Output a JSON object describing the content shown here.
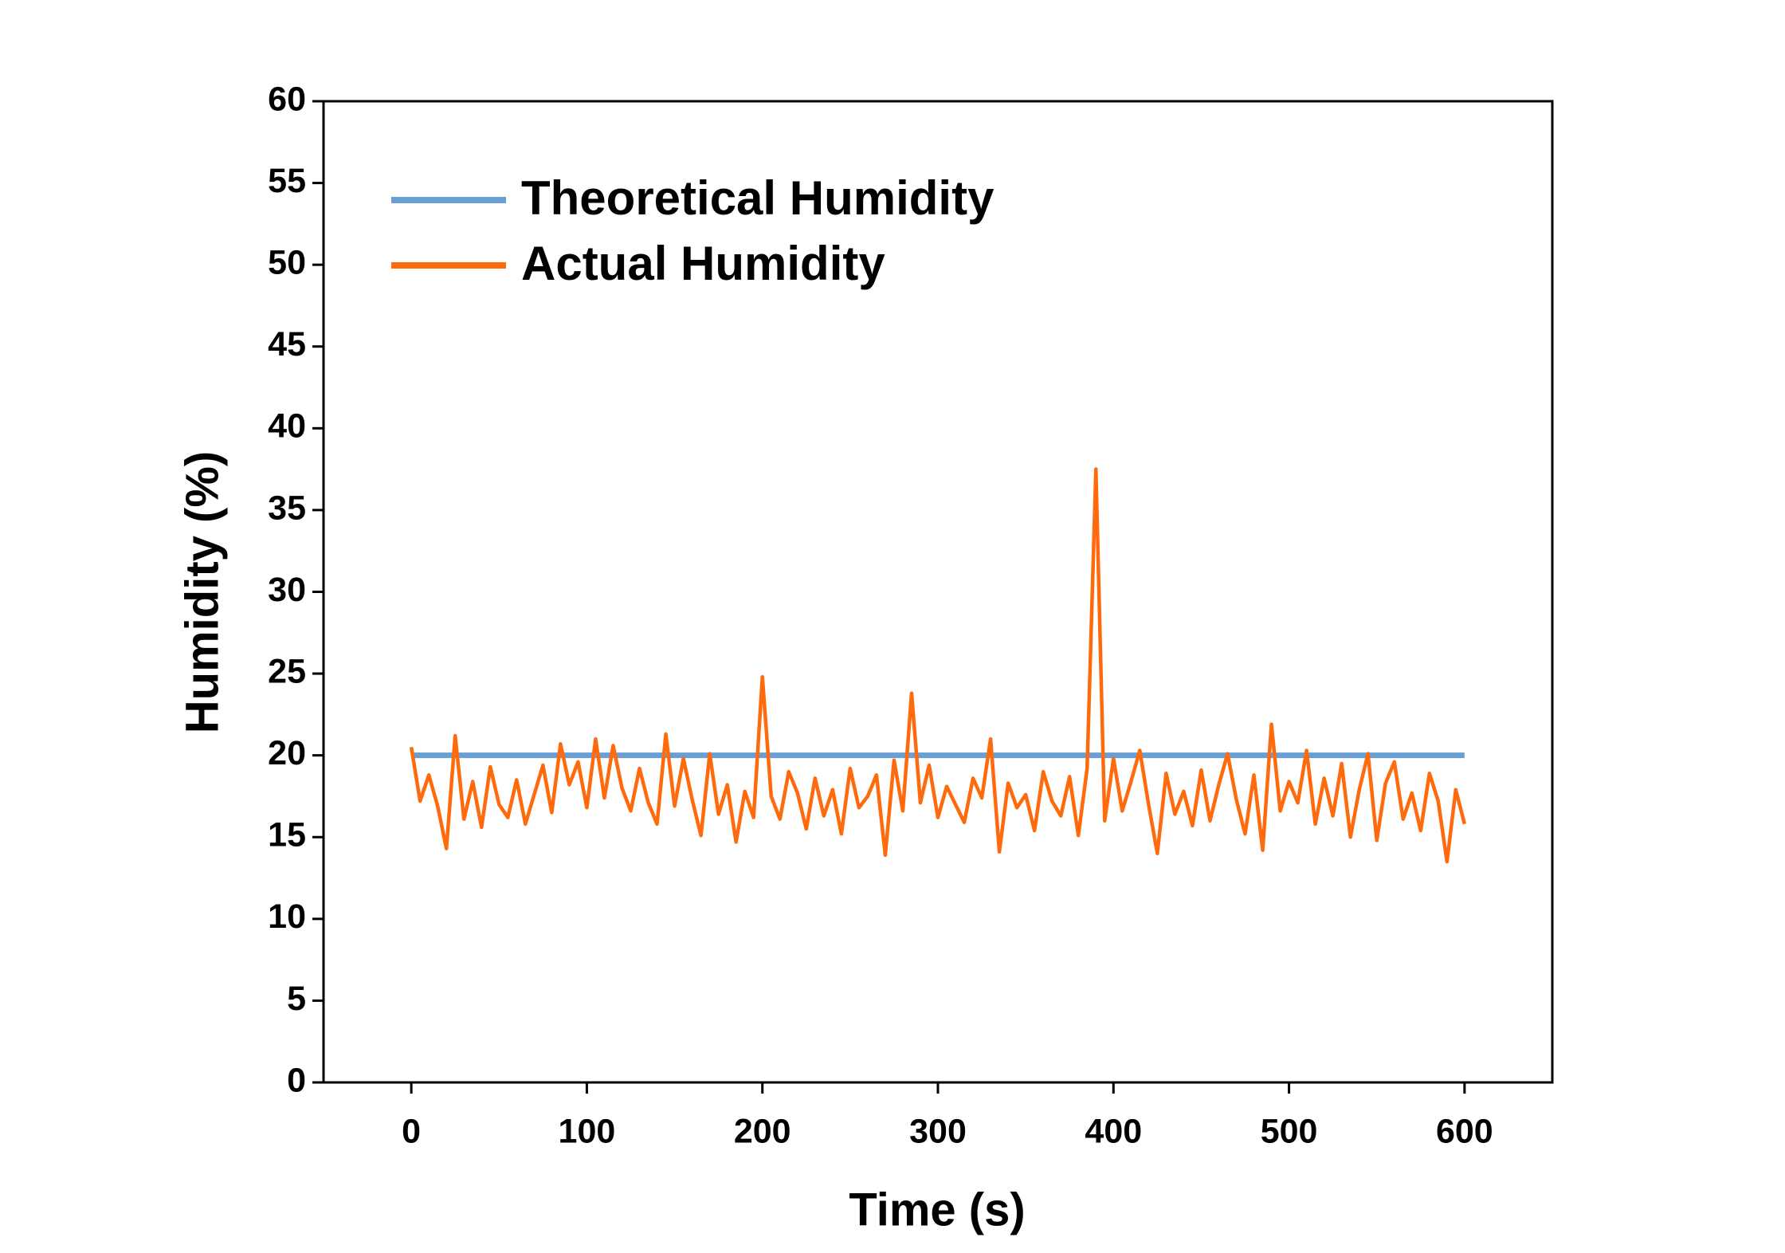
{
  "chart_data": {
    "type": "line",
    "xlabel": "Time (s)",
    "ylabel": "Humidity (%)",
    "xlim": [
      -50,
      650
    ],
    "xticks": [
      0,
      100,
      200,
      300,
      400,
      500,
      600
    ],
    "ylim": [
      0,
      60
    ],
    "yticks": [
      0,
      5,
      10,
      15,
      20,
      25,
      30,
      35,
      40,
      45,
      50,
      55,
      60
    ],
    "legend": "upper left",
    "series": [
      {
        "name": "Theoretical Humidity",
        "color": "#6a9fd4",
        "x": [
          0,
          600
        ],
        "values": [
          20,
          20
        ]
      },
      {
        "name": "Actual Humidity",
        "color": "#ff6a0d",
        "x": [
          0,
          5,
          10,
          15,
          20,
          25,
          30,
          35,
          40,
          45,
          50,
          55,
          60,
          65,
          70,
          75,
          80,
          85,
          90,
          95,
          100,
          105,
          110,
          115,
          120,
          125,
          130,
          135,
          140,
          145,
          150,
          155,
          160,
          165,
          170,
          175,
          180,
          185,
          190,
          195,
          200,
          205,
          210,
          215,
          220,
          225,
          230,
          235,
          240,
          245,
          250,
          255,
          260,
          265,
          270,
          275,
          280,
          285,
          290,
          295,
          300,
          305,
          310,
          315,
          320,
          325,
          330,
          335,
          340,
          345,
          350,
          355,
          360,
          365,
          370,
          375,
          380,
          385,
          390,
          395,
          400,
          405,
          410,
          415,
          420,
          425,
          430,
          435,
          440,
          445,
          450,
          455,
          460,
          465,
          470,
          475,
          480,
          485,
          490,
          495,
          500,
          505,
          510,
          515,
          520,
          525,
          530,
          535,
          540,
          545,
          550,
          555,
          560,
          565,
          570,
          575,
          580,
          585,
          590,
          595,
          600
        ],
        "values": [
          20.5,
          17.2,
          18.8,
          16.9,
          14.3,
          21.2,
          16.1,
          18.4,
          15.6,
          19.3,
          17.0,
          16.2,
          18.5,
          15.8,
          17.6,
          19.4,
          16.5,
          20.7,
          18.2,
          19.6,
          16.8,
          21.0,
          17.4,
          20.6,
          18.0,
          16.6,
          19.2,
          17.1,
          15.8,
          21.3,
          16.9,
          19.8,
          17.3,
          15.1,
          20.1,
          16.4,
          18.2,
          14.7,
          17.8,
          16.2,
          24.8,
          17.5,
          16.1,
          19.0,
          17.7,
          15.5,
          18.6,
          16.3,
          17.9,
          15.2,
          19.2,
          16.8,
          17.5,
          18.8,
          13.9,
          19.7,
          16.6,
          23.8,
          17.1,
          19.4,
          16.2,
          18.1,
          17.0,
          15.9,
          18.6,
          17.4,
          21.0,
          14.1,
          18.3,
          16.8,
          17.6,
          15.4,
          19.0,
          17.2,
          16.3,
          18.7,
          15.1,
          19.2,
          37.5,
          16.0,
          19.8,
          16.6,
          18.4,
          20.3,
          17.0,
          14.0,
          18.9,
          16.4,
          17.8,
          15.7,
          19.1,
          16.0,
          18.2,
          20.1,
          17.3,
          15.2,
          18.8,
          14.2,
          21.9,
          16.6,
          18.4,
          17.1,
          20.3,
          15.8,
          18.6,
          16.3,
          19.5,
          15.0,
          17.9,
          20.1,
          14.8,
          18.3,
          19.6,
          16.1,
          17.7,
          15.4,
          18.9,
          17.2,
          13.5,
          17.9,
          15.8
        ]
      }
    ]
  }
}
